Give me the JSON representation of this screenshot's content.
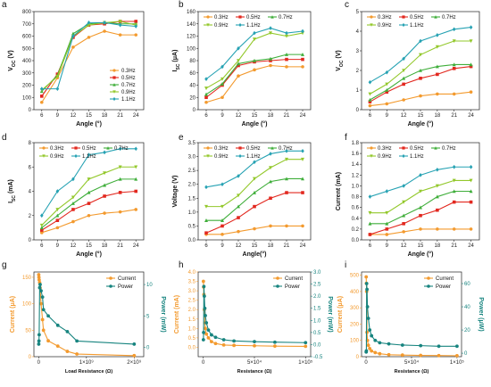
{
  "colors": {
    "0.3Hz": "#f39a2e",
    "0.5Hz": "#e2281f",
    "0.7Hz": "#3fae3a",
    "0.9Hz": "#93c82b",
    "1.1Hz": "#26a2b3",
    "current": "#f39a2e",
    "power": "#17847f"
  },
  "chart_data": [
    {
      "id": "a",
      "panel_label": "a",
      "type": "line",
      "xlabel": "Angle (°)",
      "ylabel": "V_OC (V)",
      "x": [
        6,
        9,
        12,
        15,
        18,
        21,
        24
      ],
      "xticks": [
        6,
        9,
        12,
        15,
        18,
        21,
        24
      ],
      "xtick_labels": [
        "6",
        "9",
        "12",
        "15",
        "18",
        "21",
        "24"
      ],
      "ylim": [
        0,
        800
      ],
      "yticks": [
        0,
        100,
        200,
        300,
        400,
        500,
        600,
        700,
        800
      ],
      "ytick_labels": [
        "0",
        "100",
        "200",
        "300",
        "400",
        "500",
        "600",
        "700",
        "800"
      ],
      "legend_position": "bottom-right",
      "series": [
        {
          "name": "0.3Hz",
          "values": [
            60,
            260,
            510,
            590,
            640,
            610,
            610
          ]
        },
        {
          "name": "0.5Hz",
          "values": [
            110,
            290,
            590,
            690,
            700,
            720,
            720
          ]
        },
        {
          "name": "0.7Hz",
          "values": [
            150,
            280,
            620,
            700,
            710,
            700,
            700
          ]
        },
        {
          "name": "0.9Hz",
          "values": [
            160,
            270,
            600,
            690,
            710,
            720,
            690
          ]
        },
        {
          "name": "1.1Hz",
          "values": [
            170,
            170,
            600,
            710,
            710,
            690,
            680
          ]
        }
      ]
    },
    {
      "id": "b",
      "panel_label": "b",
      "type": "line",
      "xlabel": "Angle (°)",
      "ylabel": "I_SC (μA)",
      "x": [
        6,
        9,
        12,
        15,
        18,
        21,
        24
      ],
      "xticks": [
        6,
        9,
        12,
        15,
        18,
        21,
        24
      ],
      "xtick_labels": [
        "6",
        "9",
        "12",
        "15",
        "18",
        "21",
        "24"
      ],
      "ylim": [
        0,
        160
      ],
      "yticks": [
        0,
        20,
        40,
        60,
        80,
        100,
        120,
        140,
        160
      ],
      "ytick_labels": [
        "0",
        "20",
        "40",
        "60",
        "80",
        "100",
        "120",
        "140",
        "160"
      ],
      "legend_position": "top",
      "series": [
        {
          "name": "0.3Hz",
          "values": [
            12,
            20,
            55,
            65,
            72,
            70,
            70
          ]
        },
        {
          "name": "0.5Hz",
          "values": [
            20,
            40,
            72,
            78,
            80,
            82,
            82
          ]
        },
        {
          "name": "0.7Hz",
          "values": [
            25,
            42,
            75,
            80,
            83,
            90,
            90
          ]
        },
        {
          "name": "0.9Hz",
          "values": [
            35,
            50,
            80,
            115,
            125,
            120,
            125
          ]
        },
        {
          "name": "1.1Hz",
          "values": [
            50,
            70,
            100,
            125,
            133,
            125,
            128
          ]
        }
      ]
    },
    {
      "id": "c",
      "panel_label": "c",
      "type": "line",
      "xlabel": "Angle (°)",
      "ylabel": "V_OC (V)",
      "x": [
        6,
        9,
        12,
        15,
        18,
        21,
        24
      ],
      "xticks": [
        6,
        9,
        12,
        15,
        18,
        21,
        24
      ],
      "xtick_labels": [
        "6",
        "9",
        "12",
        "15",
        "18",
        "21",
        "24"
      ],
      "ylim": [
        0,
        5
      ],
      "yticks": [
        0,
        1,
        2,
        3,
        4,
        5
      ],
      "ytick_labels": [
        "0",
        "1",
        "2",
        "3",
        "4",
        "5"
      ],
      "legend_position": "top",
      "series": [
        {
          "name": "0.3Hz",
          "values": [
            0.2,
            0.3,
            0.5,
            0.7,
            0.8,
            0.8,
            0.9
          ]
        },
        {
          "name": "0.5Hz",
          "values": [
            0.4,
            0.9,
            1.3,
            1.6,
            1.8,
            2.1,
            2.2
          ]
        },
        {
          "name": "0.7Hz",
          "values": [
            0.5,
            1.0,
            1.6,
            2.0,
            2.2,
            2.3,
            2.3
          ]
        },
        {
          "name": "0.9Hz",
          "values": [
            0.8,
            1.3,
            2.0,
            2.8,
            3.2,
            3.5,
            3.5
          ]
        },
        {
          "name": "1.1Hz",
          "values": [
            1.4,
            1.9,
            2.6,
            3.5,
            3.8,
            4.1,
            4.2
          ]
        }
      ]
    },
    {
      "id": "d",
      "panel_label": "d",
      "type": "line",
      "xlabel": "Angle (°)",
      "ylabel": "I_SC (mA)",
      "x": [
        6,
        9,
        12,
        15,
        18,
        21,
        24
      ],
      "xticks": [
        6,
        9,
        12,
        15,
        18,
        21,
        24
      ],
      "xtick_labels": [
        "6",
        "9",
        "12",
        "15",
        "18",
        "21",
        "24"
      ],
      "ylim": [
        0,
        8
      ],
      "yticks": [
        0,
        2,
        4,
        6,
        8
      ],
      "ytick_labels": [
        "0",
        "2",
        "4",
        "6",
        "8"
      ],
      "legend_position": "top",
      "series": [
        {
          "name": "0.3Hz",
          "values": [
            0.6,
            1.0,
            1.5,
            2.0,
            2.2,
            2.3,
            2.5
          ]
        },
        {
          "name": "0.5Hz",
          "values": [
            0.8,
            1.6,
            2.5,
            3.0,
            3.6,
            3.9,
            4.0
          ]
        },
        {
          "name": "0.7Hz",
          "values": [
            1.0,
            2.0,
            3.0,
            3.9,
            4.5,
            5.0,
            5.0
          ]
        },
        {
          "name": "0.9Hz",
          "values": [
            1.2,
            2.5,
            3.5,
            5.0,
            5.5,
            6.0,
            6.0
          ]
        },
        {
          "name": "1.1Hz",
          "values": [
            2.0,
            4.0,
            5.0,
            7.0,
            7.2,
            7.5,
            7.5
          ]
        }
      ]
    },
    {
      "id": "e",
      "panel_label": "e",
      "type": "line",
      "xlabel": "Angle(°)",
      "ylabel": "Voltage (V)",
      "x": [
        6,
        9,
        12,
        15,
        18,
        21,
        24
      ],
      "xticks": [
        6,
        9,
        12,
        15,
        18,
        21,
        24
      ],
      "xtick_labels": [
        "6",
        "9",
        "12",
        "15",
        "18",
        "21",
        "24"
      ],
      "ylim": [
        0,
        3.5
      ],
      "yticks": [
        0,
        0.5,
        1.0,
        1.5,
        2.0,
        2.5,
        3.0,
        3.5
      ],
      "ytick_labels": [
        "0.0",
        "0.5",
        "1.0",
        "1.5",
        "2.0",
        "2.5",
        "3.0",
        "3.5"
      ],
      "legend_position": "top",
      "series": [
        {
          "name": "0.3Hz",
          "values": [
            0.2,
            0.2,
            0.3,
            0.4,
            0.5,
            0.5,
            0.5
          ]
        },
        {
          "name": "0.5Hz",
          "values": [
            0.25,
            0.5,
            0.8,
            1.2,
            1.5,
            1.7,
            1.7
          ]
        },
        {
          "name": "0.7Hz",
          "values": [
            0.7,
            0.7,
            1.2,
            1.7,
            2.1,
            2.2,
            2.2
          ]
        },
        {
          "name": "0.9Hz",
          "values": [
            1.2,
            1.2,
            1.6,
            2.2,
            2.6,
            2.9,
            2.9
          ]
        },
        {
          "name": "1.1Hz",
          "values": [
            1.9,
            2.0,
            2.3,
            2.8,
            3.1,
            3.2,
            3.2
          ]
        }
      ]
    },
    {
      "id": "f",
      "panel_label": "f",
      "type": "line",
      "xlabel": "Angle (°)",
      "ylabel": "Current (mA)",
      "x": [
        6,
        9,
        12,
        15,
        18,
        21,
        24
      ],
      "xticks": [
        6,
        9,
        12,
        15,
        18,
        21,
        24
      ],
      "xtick_labels": [
        "6",
        "9",
        "12",
        "15",
        "18",
        "21",
        "24"
      ],
      "ylim": [
        0,
        1.8
      ],
      "yticks": [
        0,
        0.2,
        0.4,
        0.6,
        0.8,
        1.0,
        1.2,
        1.4,
        1.6,
        1.8
      ],
      "ytick_labels": [
        "0.0",
        "0.2",
        "0.4",
        "0.6",
        "0.8",
        "1.0",
        "1.2",
        "1.4",
        "1.6",
        "1.8"
      ],
      "legend_position": "top",
      "series": [
        {
          "name": "0.3Hz",
          "values": [
            0.1,
            0.1,
            0.15,
            0.2,
            0.2,
            0.2,
            0.2
          ]
        },
        {
          "name": "0.5Hz",
          "values": [
            0.1,
            0.2,
            0.3,
            0.45,
            0.55,
            0.7,
            0.7
          ]
        },
        {
          "name": "0.7Hz",
          "values": [
            0.3,
            0.3,
            0.45,
            0.6,
            0.8,
            0.9,
            0.9
          ]
        },
        {
          "name": "0.9Hz",
          "values": [
            0.5,
            0.5,
            0.7,
            0.9,
            1.0,
            1.1,
            1.1
          ]
        },
        {
          "name": "1.1Hz",
          "values": [
            0.8,
            0.9,
            1.0,
            1.2,
            1.3,
            1.35,
            1.35
          ]
        }
      ]
    },
    {
      "id": "g",
      "panel_label": "g",
      "type": "scatter",
      "xlabel": "Load Resistance (Ω)",
      "ylabel": "Current (μA)",
      "y2label": "Power (mW)",
      "xlim": [
        -100000000,
        2200000000
      ],
      "xticks": [
        0,
        1000000000,
        2000000000
      ],
      "xtick_labels": [
        "0",
        "1×10⁹",
        "2×10⁹"
      ],
      "ylim": [
        0,
        160
      ],
      "yticks": [
        0,
        50,
        100,
        150
      ],
      "ytick_labels": [
        "0",
        "50",
        "100",
        "150"
      ],
      "y2lim": [
        -1.5,
        12
      ],
      "y2ticks": [
        0,
        5,
        10
      ],
      "y2tick_labels": [
        "0",
        "5",
        "10"
      ],
      "legend_position": "top-right",
      "series": [
        {
          "name": "Current",
          "axis": "left",
          "x": [
            1000000,
            5000000,
            10000000,
            20000000,
            30000000,
            50000000,
            80000000,
            100000000,
            200000000,
            400000000,
            600000000,
            800000000,
            2000000000
          ],
          "values": [
            155,
            150,
            145,
            140,
            130,
            100,
            70,
            50,
            30,
            20,
            10,
            5,
            2
          ]
        },
        {
          "name": "Power",
          "axis": "right",
          "x": [
            1000000,
            5000000,
            10000000,
            20000000,
            30000000,
            50000000,
            80000000,
            100000000,
            200000000,
            400000000,
            600000000,
            800000000,
            2000000000
          ],
          "values": [
            0.5,
            1,
            2,
            9.5,
            10,
            9,
            8,
            6,
            5,
            3.5,
            2.5,
            1,
            0.5
          ]
        }
      ]
    },
    {
      "id": "h",
      "panel_label": "h",
      "type": "scatter",
      "xlabel": "Resistance (Ω)",
      "ylabel": "Current (mA)",
      "y2label": "Power (mW)",
      "xlim": [
        -5000,
        105000
      ],
      "xticks": [
        0,
        50000,
        100000
      ],
      "xtick_labels": [
        "0",
        "5×10⁴",
        "1×10⁵"
      ],
      "ylim": [
        -0.5,
        4.0
      ],
      "yticks": [
        0,
        0.5,
        1.0,
        1.5,
        2.0,
        2.5,
        3.0,
        3.5,
        4.0
      ],
      "ytick_labels": [
        "0.0",
        "0.5",
        "1.0",
        "1.5",
        "2.0",
        "2.5",
        "3.0",
        "3.5",
        "4.0"
      ],
      "y2lim": [
        -0.5,
        3.0
      ],
      "y2ticks": [
        -0.5,
        0,
        0.5,
        1.0,
        1.5,
        2.0,
        2.5,
        3.0
      ],
      "y2tick_labels": [
        "-0.5",
        "0.0",
        "0.5",
        "1.0",
        "1.5",
        "2.0",
        "2.5",
        "3.0"
      ],
      "legend_position": "top-right",
      "series": [
        {
          "name": "Current",
          "axis": "left",
          "x": [
            100,
            300,
            600,
            1000,
            1500,
            2000,
            3000,
            5000,
            8000,
            12000,
            20000,
            30000,
            50000,
            70000,
            100000
          ],
          "values": [
            3.5,
            3.2,
            2.8,
            2.0,
            1.3,
            1.0,
            0.7,
            0.5,
            0.3,
            0.2,
            0.12,
            0.1,
            0.08,
            0.06,
            0.05
          ]
        },
        {
          "name": "Power",
          "axis": "right",
          "x": [
            100,
            300,
            600,
            1000,
            1500,
            2000,
            3000,
            5000,
            8000,
            12000,
            20000,
            30000,
            50000,
            70000,
            100000
          ],
          "values": [
            0.2,
            0.5,
            2.4,
            2.0,
            1.5,
            1.2,
            0.9,
            0.6,
            0.4,
            0.3,
            0.2,
            0.15,
            0.12,
            0.1,
            0.08
          ]
        }
      ]
    },
    {
      "id": "i",
      "panel_label": "i",
      "type": "scatter",
      "xlabel": "Resistance (Ω)",
      "ylabel": "Current (μA)",
      "y2label": "Power (μW)",
      "xlim": [
        -5000,
        105000
      ],
      "xticks": [
        0,
        50000,
        100000
      ],
      "xtick_labels": [
        "0",
        "5×10⁴",
        "1×10⁵"
      ],
      "ylim": [
        0,
        520
      ],
      "yticks": [
        0,
        100,
        200,
        300,
        400,
        500
      ],
      "ytick_labels": [
        "0",
        "100",
        "200",
        "300",
        "400",
        "500"
      ],
      "y2lim": [
        -3,
        70
      ],
      "y2ticks": [
        0,
        20,
        40,
        60
      ],
      "y2tick_labels": [
        "0",
        "20",
        "40",
        "60"
      ],
      "legend_position": "top-right",
      "series": [
        {
          "name": "Current",
          "axis": "left",
          "x": [
            100,
            300,
            600,
            1000,
            1500,
            2500,
            4000,
            6000,
            10000,
            15000,
            25000,
            40000,
            60000,
            80000,
            100000
          ],
          "values": [
            490,
            450,
            400,
            150,
            100,
            70,
            50,
            35,
            25,
            18,
            12,
            10,
            8,
            7,
            6
          ]
        },
        {
          "name": "Power",
          "axis": "right",
          "x": [
            100,
            300,
            600,
            1000,
            1500,
            2500,
            4000,
            6000,
            10000,
            15000,
            25000,
            40000,
            60000,
            80000,
            100000
          ],
          "values": [
            1,
            2,
            60,
            55,
            40,
            30,
            20,
            15,
            11,
            9,
            8,
            7,
            6.5,
            6,
            6
          ]
        }
      ]
    }
  ]
}
